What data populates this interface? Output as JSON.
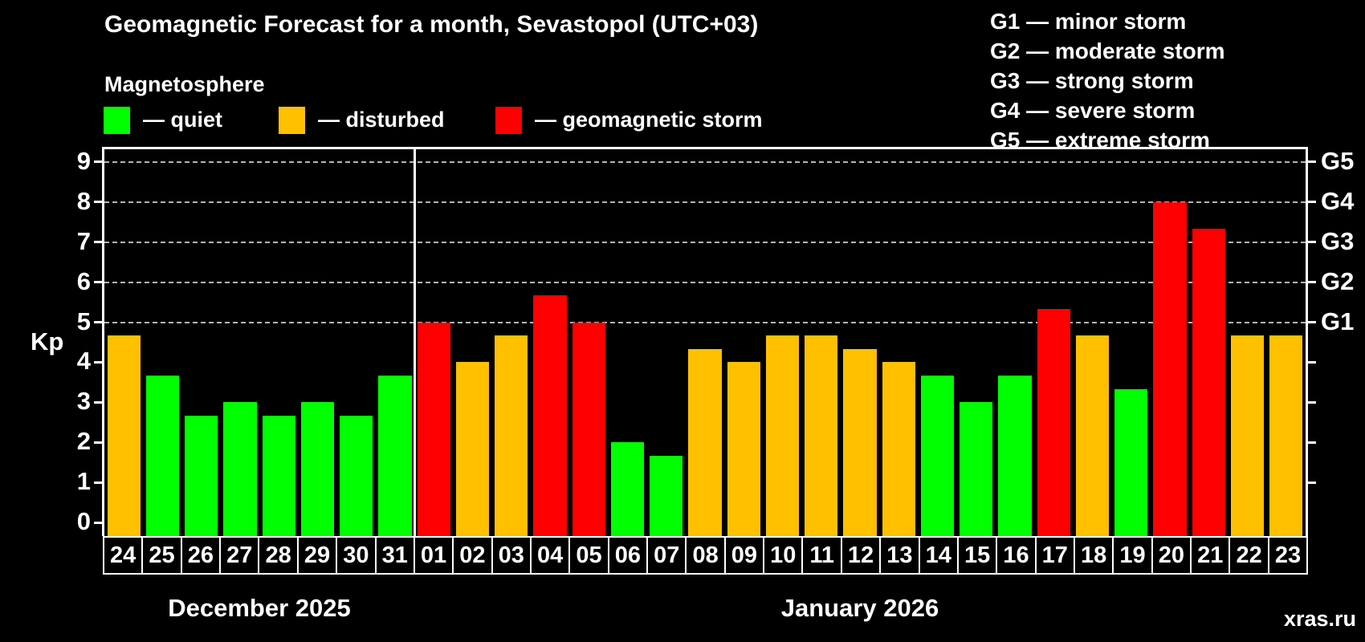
{
  "header": {
    "title": "Geomagnetic Forecast for a month, Sevastopol (UTC+03)",
    "subtitle": "Magnetosphere",
    "legend": [
      {
        "status": "quiet",
        "label": "— quiet"
      },
      {
        "status": "disturbed",
        "label": "— disturbed"
      },
      {
        "status": "storm",
        "label": "— geomagnetic storm"
      }
    ],
    "g_legend": [
      "G1 — minor storm",
      "G2 — moderate storm",
      "G3 — strong storm",
      "G4 — severe storm",
      "G5 — extreme storm"
    ]
  },
  "colors": {
    "quiet": "#00ff00",
    "disturbed": "#ffc000",
    "storm": "#ff0000",
    "grid": "#b4b4b4",
    "frame": "#ffffff",
    "watermark": "#999999"
  },
  "axis": {
    "kp_label": "Kp"
  },
  "watermark": "xras.ru",
  "chart_data": {
    "type": "bar",
    "title": "Geomagnetic Forecast for a month, Sevastopol (UTC+03)",
    "ylabel": "Kp",
    "ylim": [
      0,
      9.4
    ],
    "grid": "dashed horizontal at Kp 5-9 only",
    "legend_position": "top-left",
    "x_day_labels": [
      "24",
      "25",
      "26",
      "27",
      "28",
      "29",
      "30",
      "31",
      "01",
      "02",
      "03",
      "04",
      "05",
      "06",
      "07",
      "08",
      "09",
      "10",
      "11",
      "12",
      "13",
      "14",
      "15",
      "16",
      "17",
      "18",
      "19",
      "20",
      "21",
      "22",
      "23"
    ],
    "kp_values": [
      4.67,
      3.67,
      2.67,
      3,
      2.67,
      3,
      2.67,
      3.67,
      5,
      4,
      4.67,
      5.67,
      5,
      2,
      1.67,
      4.33,
      4,
      4.67,
      4.67,
      4.33,
      4,
      3.67,
      3,
      3.67,
      5.33,
      4.67,
      3.33,
      8,
      7.33,
      4.67,
      4.67
    ],
    "statuses": [
      "disturbed",
      "quiet",
      "quiet",
      "quiet",
      "quiet",
      "quiet",
      "quiet",
      "quiet",
      "storm",
      "disturbed",
      "disturbed",
      "storm",
      "storm",
      "quiet",
      "quiet",
      "disturbed",
      "disturbed",
      "disturbed",
      "disturbed",
      "disturbed",
      "disturbed",
      "quiet",
      "quiet",
      "quiet",
      "storm",
      "disturbed",
      "quiet",
      "storm",
      "storm",
      "disturbed",
      "disturbed"
    ],
    "months": [
      {
        "label": "December 2025",
        "n_days": 8
      },
      {
        "label": "January 2026",
        "n_days": 23
      }
    ],
    "y_ticks": [
      0,
      1,
      2,
      3,
      4,
      5,
      6,
      7,
      8,
      9
    ],
    "dashed_gridlines_at": [
      5,
      6,
      7,
      8,
      9
    ],
    "right_axis_labels": [
      {
        "label": "G5",
        "kp": 9
      },
      {
        "label": "G4",
        "kp": 8
      },
      {
        "label": "G3",
        "kp": 7
      },
      {
        "label": "G2",
        "kp": 6
      },
      {
        "label": "G1",
        "kp": 5
      }
    ]
  }
}
